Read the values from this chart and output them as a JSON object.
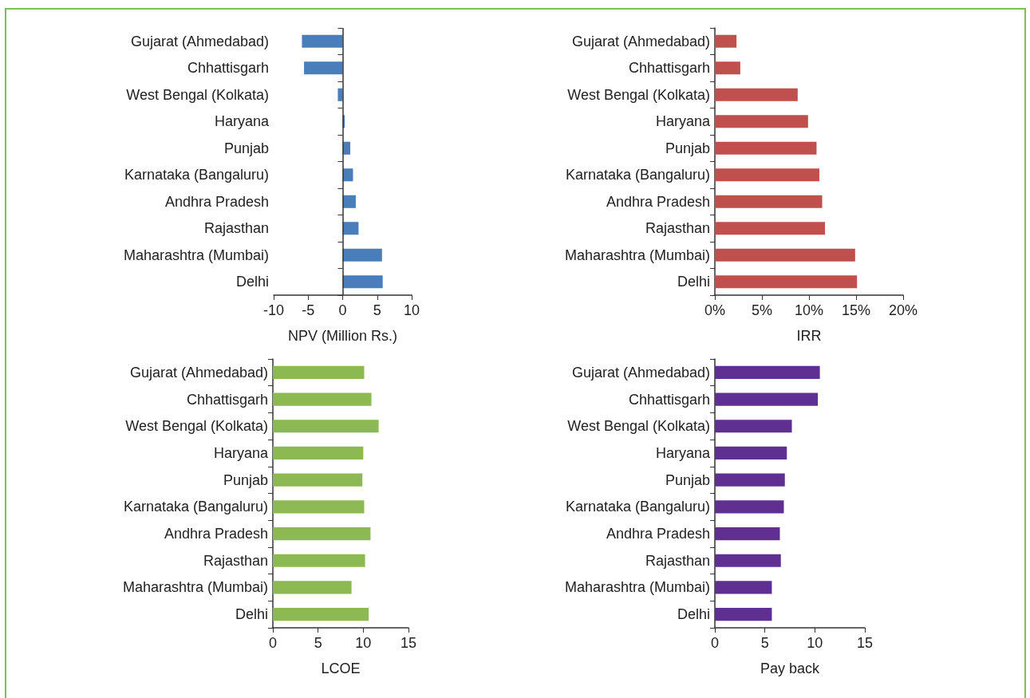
{
  "chart_data": [
    {
      "type": "bar",
      "orientation": "horizontal",
      "categories": [
        "Gujarat (Ahmedabad)",
        "Chhattisgarh",
        "West Bengal (Kolkata)",
        "Haryana",
        "Punjab",
        "Karnataka (Bangaluru)",
        "Andhra Pradesh",
        "Rajasthan",
        "Maharashtra (Mumbai)",
        "Delhi"
      ],
      "values": [
        -5.9,
        -5.6,
        -0.7,
        0.3,
        1.1,
        1.5,
        1.9,
        2.3,
        5.7,
        5.8
      ],
      "color": "#4a7ebb",
      "xlabel": "NPV (Million Rs.)",
      "xlim": [
        -10,
        10
      ],
      "xticks": [
        -10,
        -5,
        0,
        5,
        10
      ],
      "grid": false,
      "ref_lines": [
        {
          "axis": "x",
          "value": 0,
          "color": "#333333"
        }
      ]
    },
    {
      "type": "bar",
      "orientation": "horizontal",
      "categories": [
        "Gujarat (Ahmedabad)",
        "Chhattisgarh",
        "West Bengal (Kolkata)",
        "Haryana",
        "Punjab",
        "Karnataka (Bangaluru)",
        "Andhra Pradesh",
        "Rajasthan",
        "Maharashtra (Mumbai)",
        "Delhi"
      ],
      "values": [
        2.3,
        2.7,
        8.8,
        9.9,
        10.8,
        11.1,
        11.4,
        11.7,
        14.9,
        15.1
      ],
      "color": "#c0504d",
      "xlabel": "IRR",
      "xlim": [
        0,
        20
      ],
      "xticks": [
        {
          "value": 0,
          "label": "0%"
        },
        {
          "value": 5,
          "label": "5%"
        },
        {
          "value": 10,
          "label": "10%"
        },
        {
          "value": 15,
          "label": "15%"
        },
        {
          "value": 20,
          "label": "20%"
        }
      ],
      "grid": false
    },
    {
      "type": "bar",
      "orientation": "horizontal",
      "categories": [
        "Gujarat (Ahmedabad)",
        "Chhattisgarh",
        "West Bengal (Kolkata)",
        "Haryana",
        "Punjab",
        "Karnataka (Bangaluru)",
        "Andhra Pradesh",
        "Rajasthan",
        "Maharashtra (Mumbai)",
        "Delhi"
      ],
      "values": [
        10.1,
        10.9,
        11.7,
        10.0,
        9.9,
        10.1,
        10.8,
        10.2,
        8.7,
        10.6
      ],
      "color": "#8cb951",
      "xlabel": "LCOE",
      "xlim": [
        0,
        15
      ],
      "xticks": [
        0,
        5,
        10,
        15
      ],
      "grid": false
    },
    {
      "type": "bar",
      "orientation": "horizontal",
      "categories": [
        "Gujarat (Ahmedabad)",
        "Chhattisgarh",
        "West Bengal (Kolkata)",
        "Haryana",
        "Punjab",
        "Karnataka (Bangaluru)",
        "Andhra Pradesh",
        "Rajasthan",
        "Maharashtra (Mumbai)",
        "Delhi"
      ],
      "values": [
        10.5,
        10.3,
        7.7,
        7.2,
        7.0,
        6.9,
        6.5,
        6.6,
        5.7,
        5.7
      ],
      "color": "#5f3091",
      "xlabel": "Pay back",
      "xlim": [
        0,
        15
      ],
      "xticks": [
        0,
        5,
        10,
        15
      ],
      "grid": false
    }
  ]
}
